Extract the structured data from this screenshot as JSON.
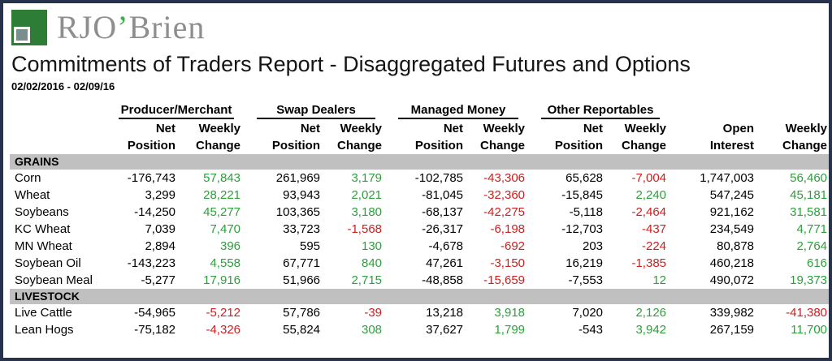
{
  "logo": {
    "text_main": "RJO",
    "apostrophe": "’",
    "text_rest": "Brien",
    "colors": {
      "green": "#2e7d36",
      "gray": "#7a8f8c",
      "apostrophe_green": "#3fae49"
    }
  },
  "header": {
    "title": "Commitments of Traders Report - Disaggregated Futures and Options",
    "date_range": "02/02/2016 - 02/09/16"
  },
  "table": {
    "group_headers": [
      "Producer/Merchant",
      "Swap Dealers",
      "Managed Money",
      "Other Reportables"
    ],
    "sub_headers": {
      "net_top": "Net",
      "net_bottom": "Position",
      "weekly_top": "Weekly",
      "weekly_bottom": "Change"
    },
    "right_headers": {
      "open_top": "Open",
      "open_bottom": "Interest",
      "weekly_top": "Weekly",
      "weekly_bottom": "Change"
    },
    "colors": {
      "positive": "#2e9e3d",
      "negative": "#cc2020",
      "section_bg": "#c0c0c0"
    },
    "sections": [
      {
        "name": "GRAINS",
        "rows": [
          {
            "commodity": "Corn",
            "values": [
              "-176,743",
              "57,843",
              "261,969",
              "3,179",
              "-102,785",
              "-43,306",
              "65,628",
              "-7,004",
              "1,747,003",
              "56,460"
            ]
          },
          {
            "commodity": "Wheat",
            "values": [
              "3,299",
              "28,221",
              "93,943",
              "2,021",
              "-81,045",
              "-32,360",
              "-15,845",
              "2,240",
              "547,245",
              "45,181"
            ]
          },
          {
            "commodity": "Soybeans",
            "values": [
              "-14,250",
              "45,277",
              "103,365",
              "3,180",
              "-68,137",
              "-42,275",
              "-5,118",
              "-2,464",
              "921,162",
              "31,581"
            ]
          },
          {
            "commodity": "KC Wheat",
            "values": [
              "7,039",
              "7,470",
              "33,723",
              "-1,568",
              "-26,317",
              "-6,198",
              "-12,703",
              "-437",
              "234,549",
              "4,771"
            ]
          },
          {
            "commodity": "MN Wheat",
            "values": [
              "2,894",
              "396",
              "595",
              "130",
              "-4,678",
              "-692",
              "203",
              "-224",
              "80,878",
              "2,764"
            ]
          },
          {
            "commodity": "Soybean Oil",
            "values": [
              "-143,223",
              "4,558",
              "67,771",
              "840",
              "47,261",
              "-3,150",
              "16,219",
              "-1,385",
              "460,218",
              "616"
            ]
          },
          {
            "commodity": "Soybean Meal",
            "values": [
              "-5,277",
              "17,916",
              "51,966",
              "2,715",
              "-48,858",
              "-15,659",
              "-7,553",
              "12",
              "490,072",
              "19,373"
            ]
          }
        ]
      },
      {
        "name": "LIVESTOCK",
        "rows": [
          {
            "commodity": "Live Cattle",
            "values": [
              "-54,965",
              "-5,212",
              "57,786",
              "-39",
              "13,218",
              "3,918",
              "7,020",
              "2,126",
              "339,982",
              "-41,380"
            ]
          },
          {
            "commodity": "Lean Hogs",
            "values": [
              "-75,182",
              "-4,326",
              "55,824",
              "308",
              "37,627",
              "1,799",
              "-543",
              "3,942",
              "267,159",
              "11,700"
            ]
          }
        ]
      }
    ]
  }
}
